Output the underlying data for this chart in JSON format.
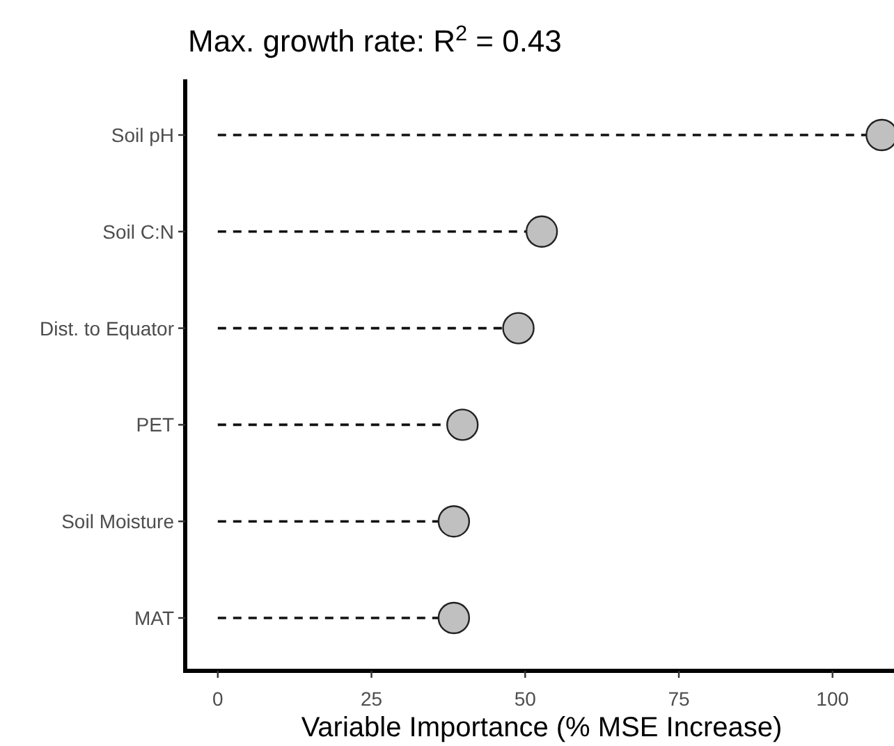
{
  "chart_data": {
    "type": "lollipop",
    "orientation": "horizontal",
    "title": "Max. growth rate: R$^{2}$ = 0.43",
    "xlabel": "Variable Importance (% MSE Increase)",
    "categories": [
      "Soil pH",
      "Soil C:N",
      "Dist. to Equator",
      "PET",
      "Soil Moisture",
      "MAT"
    ],
    "values": [
      108,
      52.7,
      48.9,
      39.8,
      38.4,
      38.4
    ],
    "color": "#c0c0c0",
    "xlim": [
      -5.3,
      110
    ],
    "xticks": [
      0,
      25,
      50,
      75,
      100
    ],
    "marker": "circle",
    "line_style": "dashed",
    "grid": false,
    "legend": false
  }
}
